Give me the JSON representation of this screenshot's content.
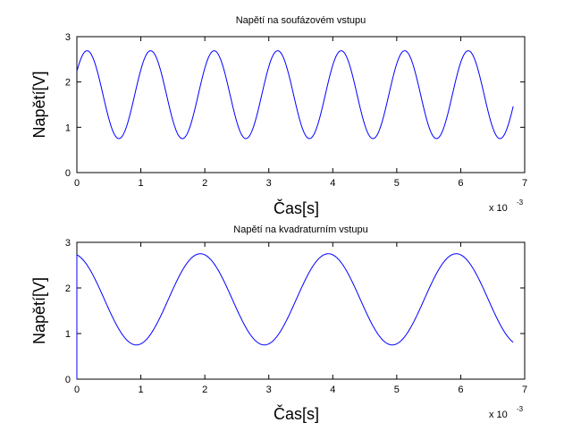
{
  "chart_data": [
    {
      "type": "line",
      "title": "Napětí na soufázovém vstupu",
      "xlabel": "Čas[s]",
      "ylabel": "Napětí[V]",
      "x_multiplier": {
        "base": "x 10",
        "exponent": "-3"
      },
      "xlim": [
        0,
        7
      ],
      "ylim": [
        0,
        3
      ],
      "xticks": [
        "0",
        "1",
        "2",
        "3",
        "4",
        "5",
        "6",
        "7"
      ],
      "yticks": [
        "0",
        "1",
        "2",
        "3"
      ],
      "grid": false,
      "color": "#0000ff",
      "series": [
        {
          "x_units": "x 10^-3 s",
          "waveform": "sine",
          "offset": 1.72,
          "amplitude": 0.97,
          "period": 0.993,
          "first_peak_at": 0.16,
          "x_range": [
            0,
            6.82
          ],
          "sample_points": [
            [
              0,
              2.25
            ],
            [
              0.16,
              2.69
            ],
            [
              0.655,
              0.75
            ],
            [
              1.15,
              2.69
            ],
            [
              1.65,
              0.75
            ],
            [
              2.14,
              2.69
            ],
            [
              2.64,
              0.75
            ],
            [
              3.13,
              2.69
            ],
            [
              3.63,
              0.75
            ],
            [
              4.13,
              2.69
            ],
            [
              4.62,
              0.75
            ],
            [
              5.12,
              2.69
            ],
            [
              5.61,
              0.75
            ],
            [
              6.11,
              2.69
            ],
            [
              6.6,
              0.75
            ],
            [
              6.82,
              1.25
            ]
          ]
        }
      ]
    },
    {
      "type": "line",
      "title": "Napětí na kvadraturním vstupu",
      "xlabel": "Čas[s]",
      "ylabel": "Napětí[V]",
      "x_multiplier": {
        "base": "x 10",
        "exponent": "-3"
      },
      "xlim": [
        0,
        7
      ],
      "ylim": [
        0,
        3
      ],
      "xticks": [
        "0",
        "1",
        "2",
        "3",
        "4",
        "5",
        "6",
        "7"
      ],
      "yticks": [
        "0",
        "1",
        "2",
        "3"
      ],
      "grid": false,
      "color": "#0000ff",
      "series": [
        {
          "x_units": "x 10^-3 s",
          "waveform": "sine",
          "offset": 1.75,
          "amplitude": 1.0,
          "period": 2.0,
          "first_peak_at": -0.07,
          "starts_from": [
            0,
            0
          ],
          "x_range": [
            0,
            6.82
          ],
          "sample_points": [
            [
              0,
              0
            ],
            [
              0,
              2.72
            ],
            [
              0.93,
              0.75
            ],
            [
              1.93,
              2.75
            ],
            [
              2.93,
              0.75
            ],
            [
              3.93,
              2.75
            ],
            [
              4.93,
              0.75
            ],
            [
              5.93,
              2.75
            ],
            [
              6.82,
              0.8
            ]
          ]
        }
      ]
    }
  ]
}
